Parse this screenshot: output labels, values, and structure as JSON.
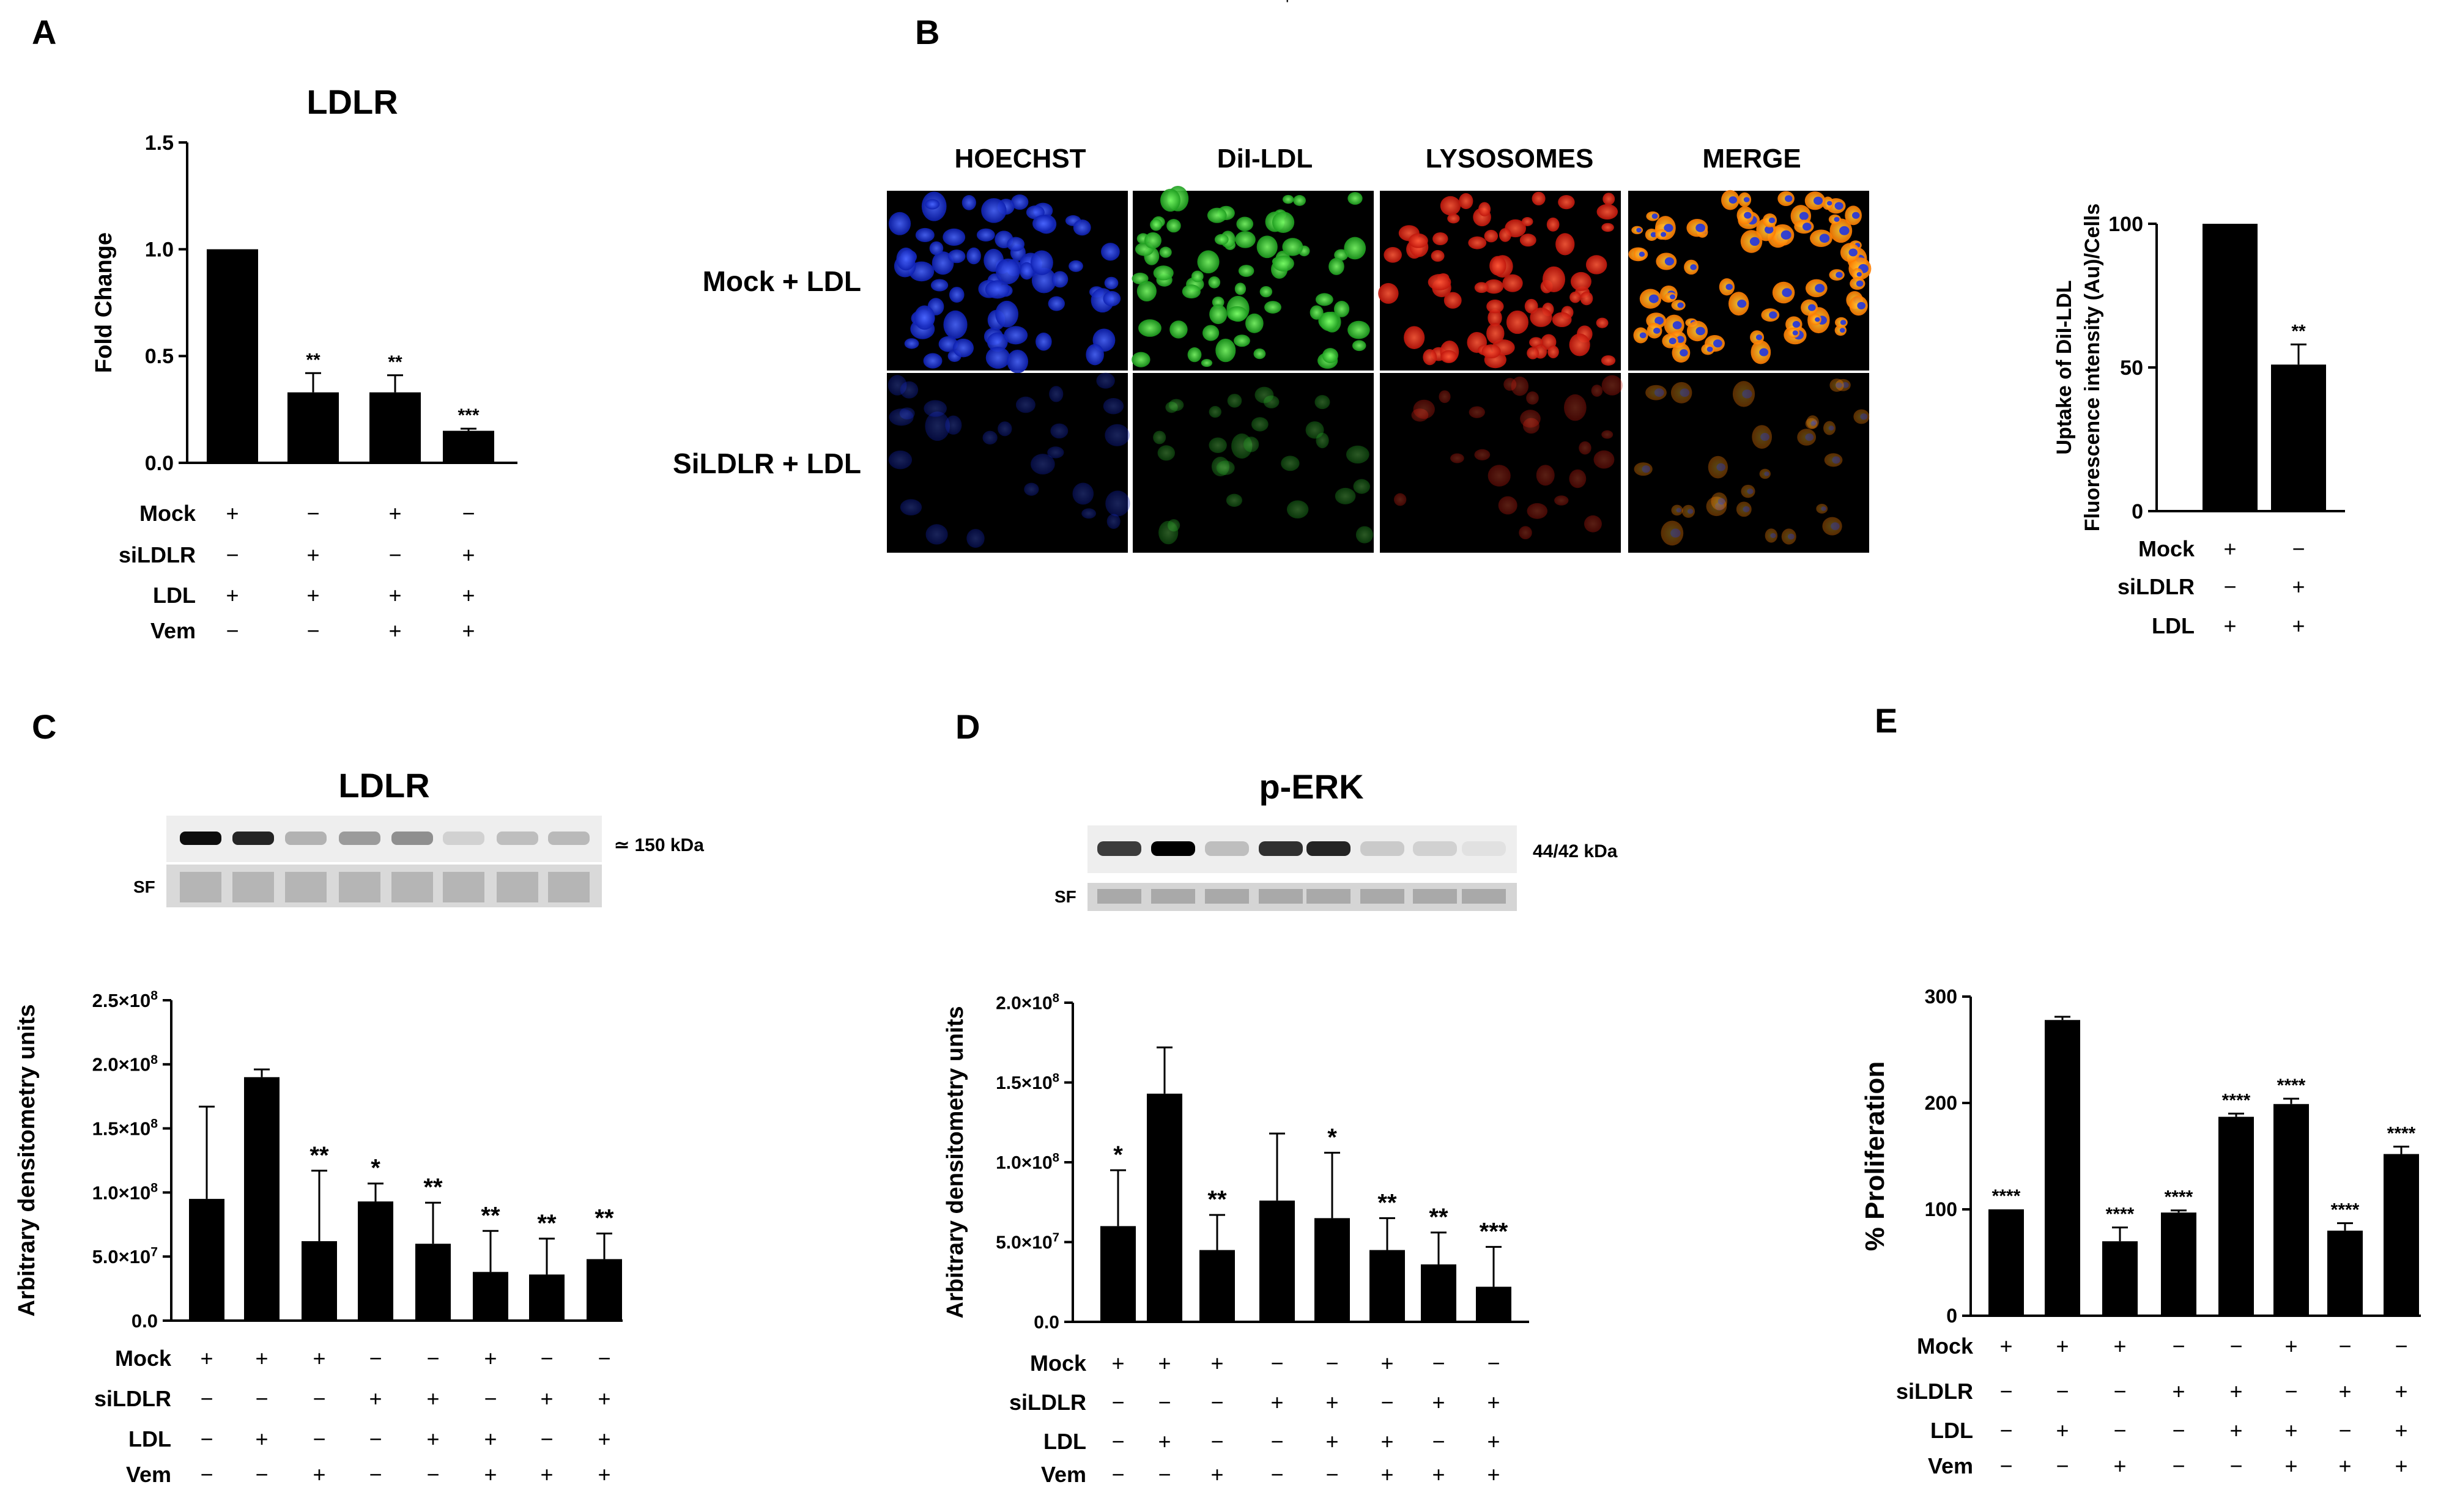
{
  "panel_labels": [
    "A",
    "B",
    "C",
    "D",
    "E"
  ],
  "microscopy": {
    "columns": [
      "HOECHST",
      "DiI-LDL",
      "LYSOSOMES",
      "MERGE"
    ],
    "rows": [
      "Mock + LDL",
      "SiLDLR + LDL"
    ],
    "colors": {
      "hoechst": "#1f3cff",
      "dil": "#39e23a",
      "lyso": "#ff2a1a",
      "merge_a": "#ffb400",
      "merge_b": "#2035e0"
    }
  },
  "blots": [
    {
      "title": "LDLR",
      "marker": "≃ 150 kDa",
      "loading": "SF"
    },
    {
      "title": "p-ERK",
      "marker": "44/42 kDa",
      "loading": "SF"
    }
  ],
  "chart_data": [
    {
      "panel": "A",
      "type": "bar",
      "title": "LDLR",
      "xlabel": "",
      "ylabel": "Fold Change",
      "ylim": [
        0,
        1.5
      ],
      "yticks": [
        "0.0",
        "0.5",
        "1.0",
        "1.5"
      ],
      "values": [
        1.0,
        0.33,
        0.33,
        0.15
      ],
      "errors": [
        0,
        0.09,
        0.08,
        0.01
      ],
      "sig": [
        "",
        "**",
        "**",
        "***"
      ],
      "condition_rows": [
        {
          "label": "Mock",
          "signs": [
            "+",
            "−",
            "+",
            "−"
          ]
        },
        {
          "label": "siLDLR",
          "signs": [
            "−",
            "+",
            "−",
            "+"
          ]
        },
        {
          "label": "LDL",
          "signs": [
            "+",
            "+",
            "+",
            "+"
          ]
        },
        {
          "label": "Vem",
          "signs": [
            "−",
            "−",
            "+",
            "+"
          ]
        }
      ]
    },
    {
      "panel": "B",
      "type": "bar",
      "title": "",
      "xlabel": "",
      "ylabel": "Uptake of DiI-LDL Fluorescence intensity (Au)/Cells",
      "ylabel_lines": [
        "Uptake of DiI-LDL",
        "Fluorescence intensity (Au)/Cells"
      ],
      "ylim": [
        0,
        100
      ],
      "yticks": [
        "0",
        "50",
        "100"
      ],
      "values": [
        100,
        51
      ],
      "errors": [
        0,
        7
      ],
      "sig": [
        "",
        "**"
      ],
      "condition_rows": [
        {
          "label": "Mock",
          "signs": [
            "+",
            "−"
          ]
        },
        {
          "label": "siLDLR",
          "signs": [
            "−",
            "+"
          ]
        },
        {
          "label": "LDL",
          "signs": [
            "+",
            "+"
          ]
        }
      ]
    },
    {
      "panel": "C",
      "type": "bar",
      "title": "LDLR",
      "xlabel": "",
      "ylabel": "Arbitrary densitometry units",
      "ylim": [
        0,
        250000000.0
      ],
      "yticks": [
        "0.0",
        "5.0×10⁷",
        "1.0×10⁸",
        "1.5×10⁸",
        "2.0×10⁸",
        "2.5×10⁸"
      ],
      "values": [
        95000000.0,
        190000000.0,
        62000000.0,
        93000000.0,
        60000000.0,
        38000000.0,
        36000000.0,
        48000000.0
      ],
      "errors": [
        72000000.0,
        6000000.0,
        55000000.0,
        14000000.0,
        32000000.0,
        32000000.0,
        28000000.0,
        20000000.0
      ],
      "sig": [
        "",
        "",
        "**",
        "*",
        "**",
        "**",
        "**",
        "**"
      ],
      "condition_rows": [
        {
          "label": "Mock",
          "signs": [
            "+",
            "+",
            "+",
            "−",
            "−",
            "+",
            "−",
            "−"
          ]
        },
        {
          "label": "siLDLR",
          "signs": [
            "−",
            "−",
            "−",
            "+",
            "+",
            "−",
            "+",
            "+"
          ]
        },
        {
          "label": "LDL",
          "signs": [
            "−",
            "+",
            "−",
            "−",
            "+",
            "+",
            "−",
            "+"
          ]
        },
        {
          "label": "Vem",
          "signs": [
            "−",
            "−",
            "+",
            "−",
            "−",
            "+",
            "+",
            "+"
          ]
        }
      ]
    },
    {
      "panel": "D",
      "type": "bar",
      "title": "p-ERK",
      "xlabel": "",
      "ylabel": "Arbitrary densitometry units",
      "ylim": [
        0,
        200000000.0
      ],
      "yticks": [
        "0.0",
        "5.0×10⁷",
        "1.0×10⁸",
        "1.5×10⁸",
        "2.0×10⁸"
      ],
      "values": [
        60000000.0,
        143000000.0,
        45000000.0,
        76000000.0,
        65000000.0,
        45000000.0,
        36000000.0,
        22000000.0
      ],
      "errors": [
        35000000.0,
        29000000.0,
        22000000.0,
        42000000.0,
        41000000.0,
        20000000.0,
        20000000.0,
        25000000.0
      ],
      "sig": [
        "*",
        "",
        "**",
        "",
        "*",
        "**",
        "**",
        "***"
      ],
      "condition_rows": [
        {
          "label": "Mock",
          "signs": [
            "+",
            "+",
            "+",
            "−",
            "−",
            "+",
            "−",
            "−"
          ]
        },
        {
          "label": "siLDLR",
          "signs": [
            "−",
            "−",
            "−",
            "+",
            "+",
            "−",
            "+",
            "+"
          ]
        },
        {
          "label": "LDL",
          "signs": [
            "−",
            "+",
            "−",
            "−",
            "+",
            "+",
            "−",
            "+"
          ]
        },
        {
          "label": "Vem",
          "signs": [
            "−",
            "−",
            "+",
            "−",
            "−",
            "+",
            "+",
            "+"
          ]
        }
      ]
    },
    {
      "panel": "E",
      "type": "bar",
      "title": "",
      "xlabel": "",
      "ylabel": "% Proliferation",
      "ylim": [
        0,
        300
      ],
      "yticks": [
        "0",
        "100",
        "200",
        "300"
      ],
      "values": [
        100,
        278,
        70,
        97,
        187,
        199,
        80,
        152
      ],
      "errors": [
        0,
        3,
        13,
        2,
        3,
        5,
        7,
        7
      ],
      "sig": [
        "****",
        "",
        "****",
        "****",
        "****",
        "****",
        "****",
        "****"
      ],
      "condition_rows": [
        {
          "label": "Mock",
          "signs": [
            "+",
            "+",
            "+",
            "−",
            "−",
            "+",
            "−",
            "−"
          ]
        },
        {
          "label": "siLDLR",
          "signs": [
            "−",
            "−",
            "−",
            "+",
            "+",
            "−",
            "+",
            "+"
          ]
        },
        {
          "label": "LDL",
          "signs": [
            "−",
            "+",
            "−",
            "−",
            "+",
            "+",
            "−",
            "+"
          ]
        },
        {
          "label": "Vem",
          "signs": [
            "−",
            "−",
            "+",
            "−",
            "−",
            "+",
            "+",
            "+"
          ]
        }
      ]
    }
  ]
}
